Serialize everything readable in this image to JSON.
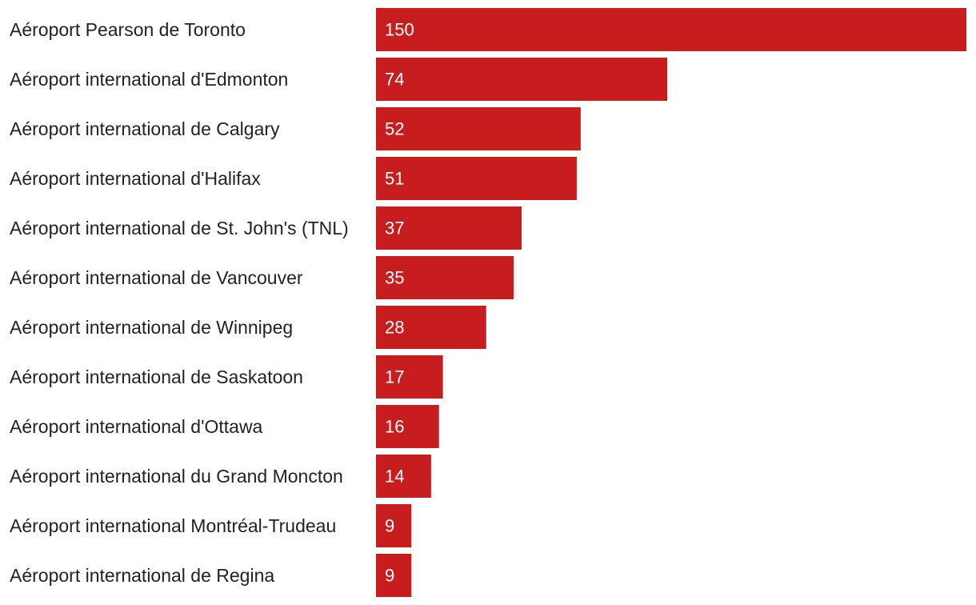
{
  "chart_data": {
    "type": "bar",
    "orientation": "horizontal",
    "categories": [
      "Aéroport Pearson de Toronto",
      "Aéroport international d'Edmonton",
      "Aéroport international de Calgary",
      "Aéroport international d'Halifax",
      "Aéroport international de St. John's (TNL)",
      "Aéroport international de Vancouver",
      "Aéroport international de Winnipeg",
      "Aéroport international de Saskatoon",
      "Aéroport international d'Ottawa",
      "Aéroport international du Grand Moncton",
      "Aéroport international Montréal-Trudeau",
      "Aéroport international de Regina"
    ],
    "values": [
      150,
      74,
      52,
      51,
      37,
      35,
      28,
      17,
      16,
      14,
      9,
      9
    ],
    "data_labels": [
      "150",
      "74",
      "52",
      "51",
      "37",
      "35",
      "28",
      "17",
      "16",
      "14",
      "9",
      "9"
    ],
    "xlim": [
      0,
      150
    ],
    "grid": false,
    "legend": "none",
    "bar_color": "#c81d1e"
  }
}
